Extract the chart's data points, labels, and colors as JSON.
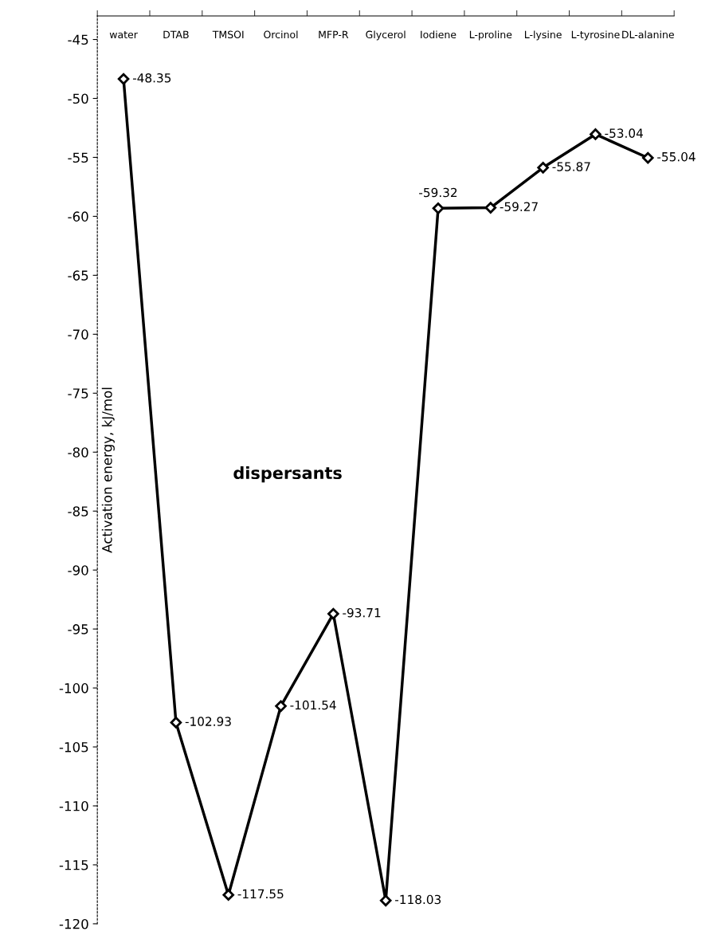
{
  "chart_data": {
    "type": "line",
    "categories": [
      "water",
      "DTAB",
      "TMSOI",
      "Orcinol",
      "MFP-R",
      "Glycerol",
      "Iodiene",
      "L-proline",
      "L-lysine",
      "L-tyrosine",
      "DL-alanine"
    ],
    "series": [
      {
        "color": "#000000",
        "values": [
          -48.35,
          -102.93,
          -117.55,
          -101.54,
          -93.71,
          -118.03,
          -59.32,
          -59.27,
          -55.87,
          -53.04,
          -55.04
        ]
      }
    ],
    "ylabel": "Activation energy, kJ/mol",
    "annotations": [
      {
        "text": "dispersants"
      }
    ],
    "ylim": [
      -120,
      -43
    ],
    "yticks": [
      -120,
      -115,
      -110,
      -105,
      -100,
      -95,
      -90,
      -85,
      -80,
      -75,
      -70,
      -65,
      -60,
      -55,
      -50,
      -45
    ],
    "data_labels": true,
    "marker": "diamond",
    "line_style": "solid",
    "grid": false,
    "legend": false
  }
}
